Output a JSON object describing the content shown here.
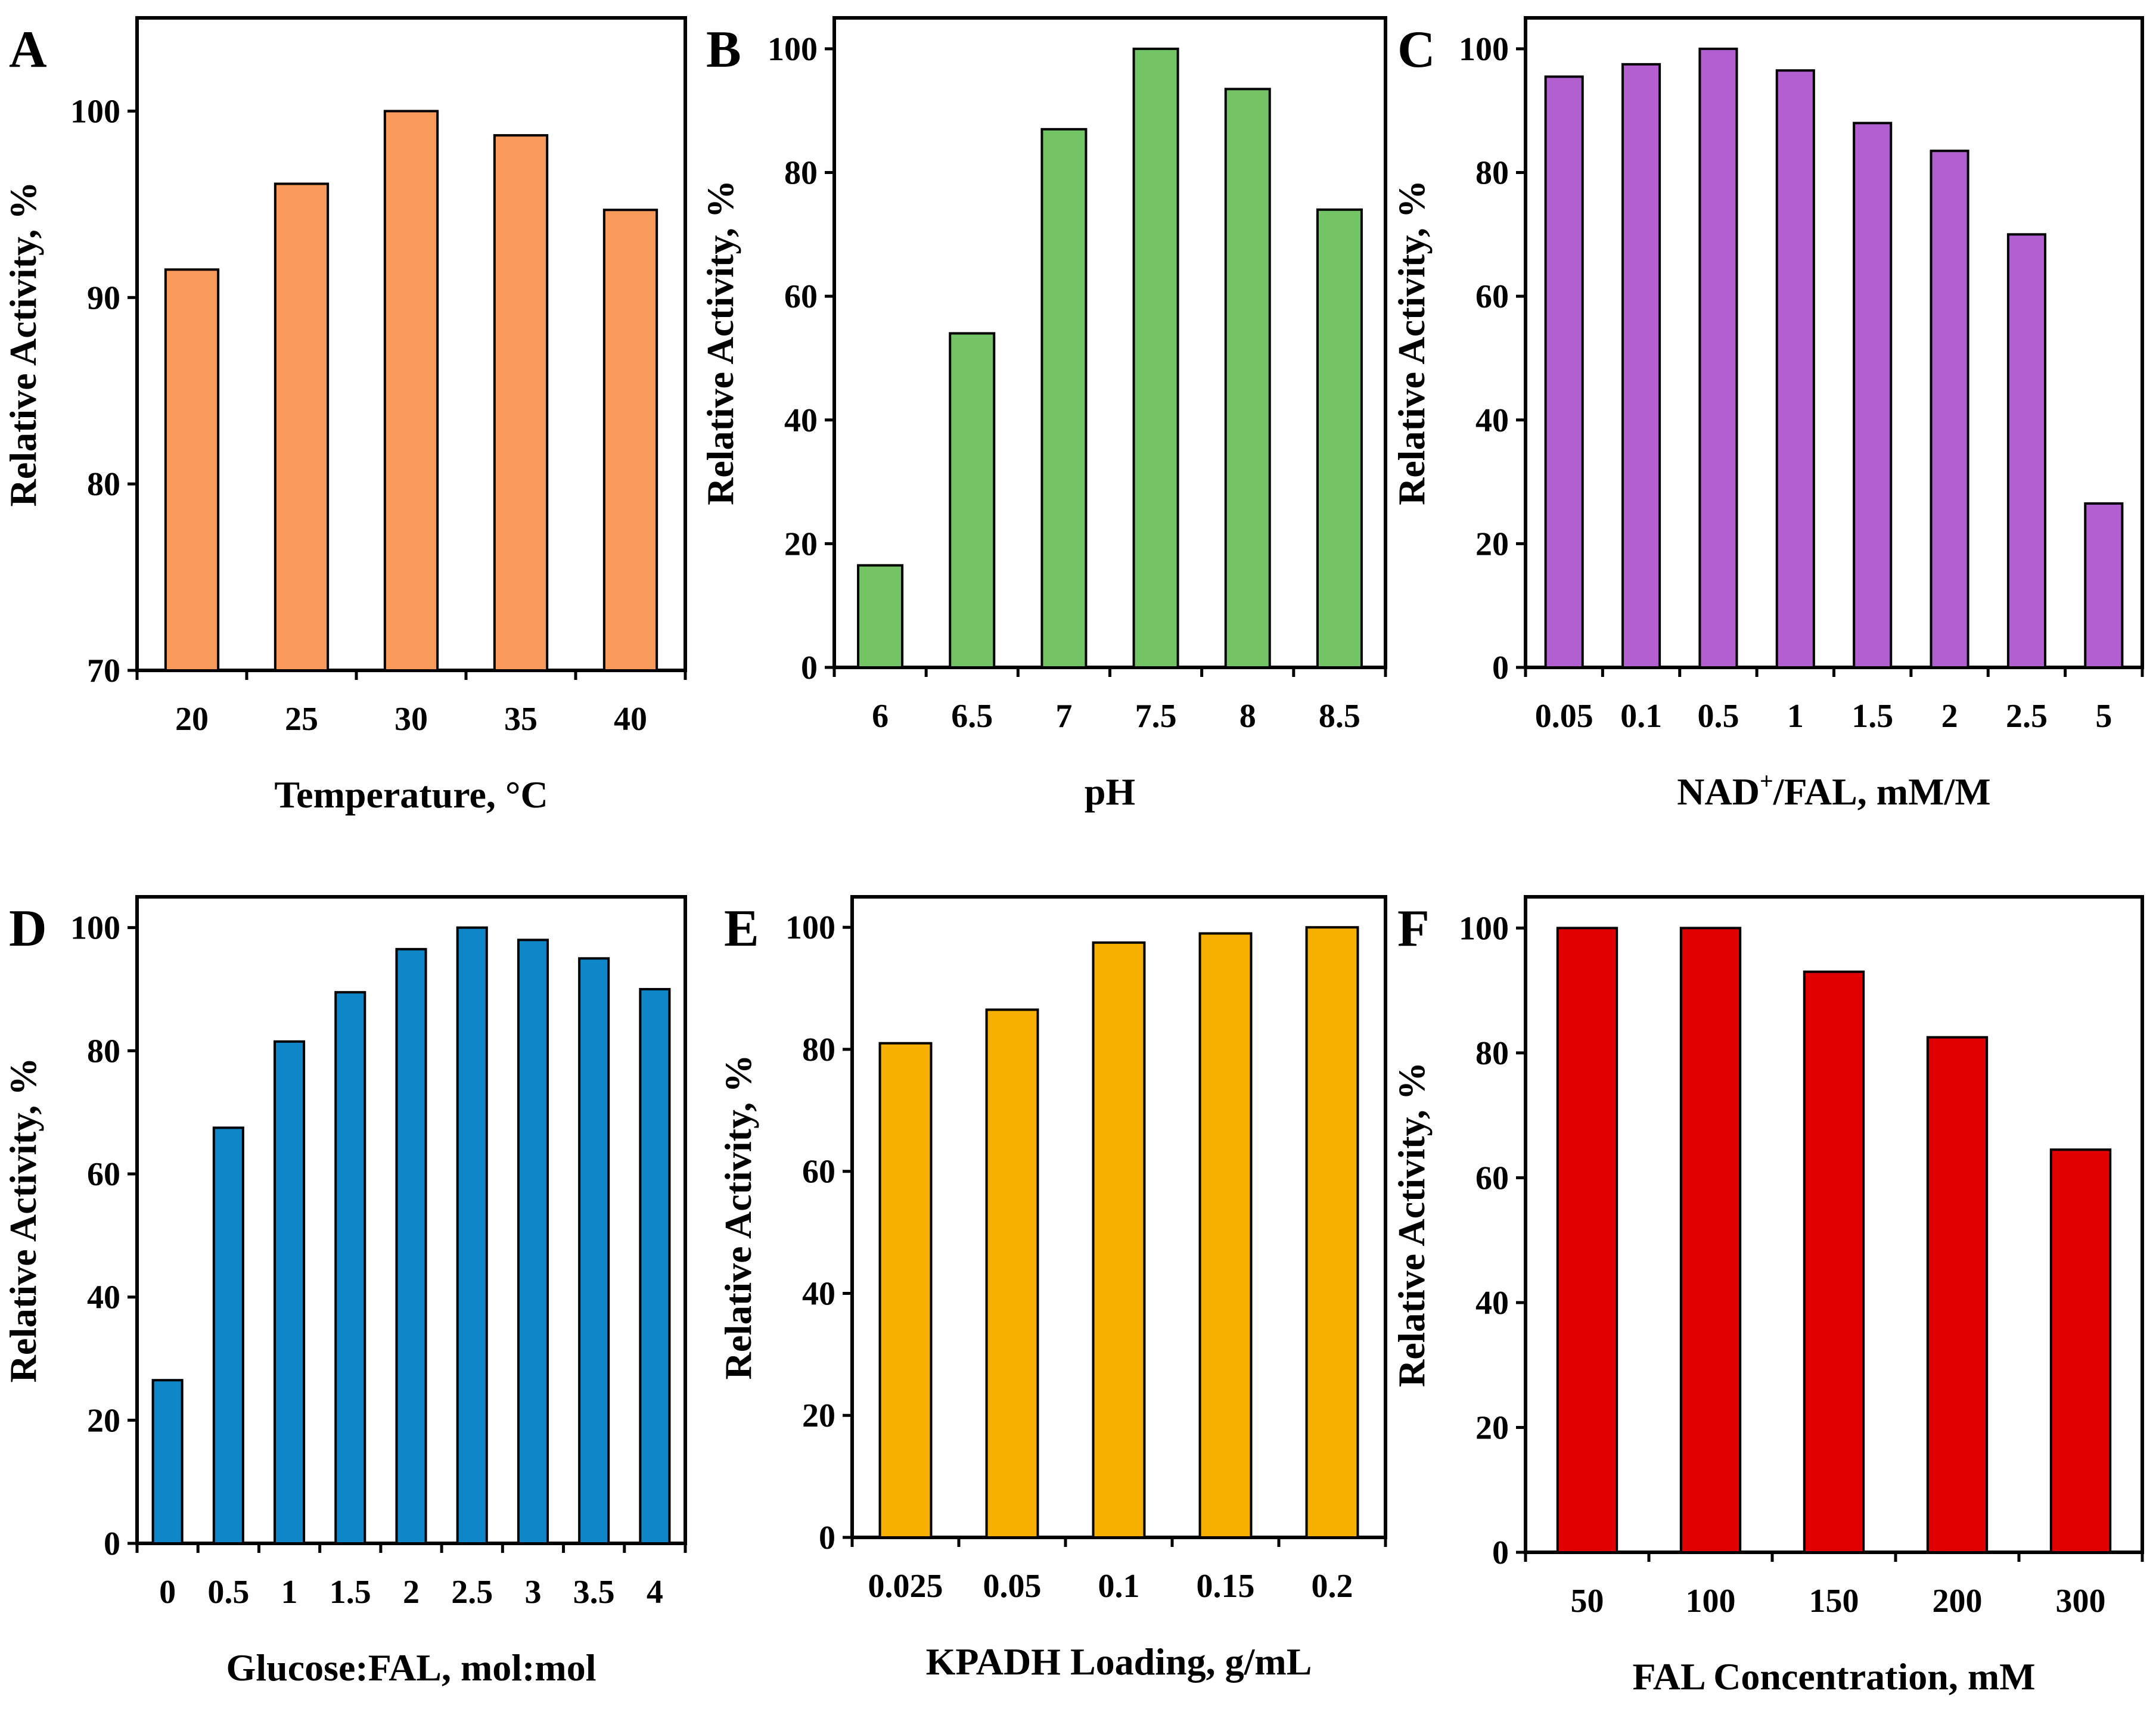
{
  "chart_data": [
    {
      "panel": "A",
      "type": "bar",
      "title": "",
      "xlabel": "Temperature, °C",
      "ylabel": "Relative Activity, %",
      "categories": [
        "20",
        "25",
        "30",
        "35",
        "40"
      ],
      "values": [
        91.5,
        96.1,
        100.0,
        98.7,
        94.7
      ],
      "ylim": [
        70,
        105
      ],
      "yticks": [
        70,
        80,
        90,
        100
      ],
      "color": "#F79A5A"
    },
    {
      "panel": "B",
      "type": "bar",
      "title": "",
      "xlabel": "pH",
      "ylabel": "Relative Activity, %",
      "categories": [
        "6",
        "6.5",
        "7",
        "7.5",
        "8",
        "8.5"
      ],
      "values": [
        16.5,
        54.0,
        87.0,
        100.0,
        93.5,
        74.0
      ],
      "ylim": [
        0,
        105
      ],
      "yticks": [
        0,
        20,
        40,
        60,
        80,
        100
      ],
      "color": "#73C465"
    },
    {
      "panel": "C",
      "type": "bar",
      "title": "",
      "xlabel_parts": [
        "NAD",
        "+",
        "/FAL, mM/M"
      ],
      "ylabel": "Relative Activity, %",
      "categories": [
        "0.05",
        "0.1",
        "0.5",
        "1",
        "1.5",
        "2",
        "2.5",
        "5"
      ],
      "values": [
        95.5,
        97.5,
        100.0,
        96.5,
        88.0,
        83.5,
        70.0,
        26.5
      ],
      "ylim": [
        0,
        105
      ],
      "yticks": [
        0,
        20,
        40,
        60,
        80,
        100
      ],
      "color": "#B25FCF"
    },
    {
      "panel": "D",
      "type": "bar",
      "title": "",
      "xlabel": "Glucose:FAL, mol:mol",
      "ylabel": "Relative Activity, %",
      "categories": [
        "0",
        "0.5",
        "1",
        "1.5",
        "2",
        "2.5",
        "3",
        "3.5",
        "4"
      ],
      "values": [
        26.5,
        67.5,
        81.5,
        89.5,
        96.5,
        100.0,
        98.0,
        95.0,
        90.0
      ],
      "ylim": [
        0,
        105
      ],
      "yticks": [
        0,
        20,
        40,
        60,
        80,
        100
      ],
      "color": "#0F86C8"
    },
    {
      "panel": "E",
      "type": "bar",
      "title": "",
      "xlabel": "KPADH Loading, g/mL",
      "ylabel": "Relative Activity, %",
      "categories": [
        "0.025",
        "0.05",
        "0.1",
        "0.15",
        "0.2"
      ],
      "values": [
        81.0,
        86.5,
        97.5,
        99.0,
        100.0
      ],
      "ylim": [
        0,
        105
      ],
      "yticks": [
        0,
        20,
        40,
        60,
        80,
        100
      ],
      "color": "#F8B000"
    },
    {
      "panel": "F",
      "type": "bar",
      "title": "",
      "xlabel": "FAL Concentration, mM",
      "ylabel": "Relative Activity, %",
      "categories": [
        "50",
        "100",
        "150",
        "200",
        "300"
      ],
      "values": [
        100.0,
        100.0,
        93.0,
        82.5,
        64.5
      ],
      "ylim": [
        0,
        105
      ],
      "yticks": [
        0,
        20,
        40,
        60,
        80,
        100
      ],
      "color": "#E00000"
    }
  ]
}
